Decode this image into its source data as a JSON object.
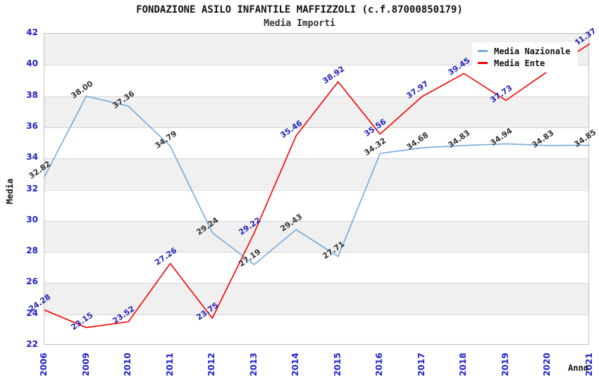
{
  "header": {
    "title": "FONDAZIONE ASILO INFANTILE MAFFIZZOLI (c.f.87000850179)",
    "subtitle": "Media Importi"
  },
  "chart_data": {
    "type": "line",
    "title": "FONDAZIONE ASILO INFANTILE MAFFIZZOLI (c.f.87000850179)",
    "subtitle": "Media Importi",
    "xlabel": "Anno",
    "ylabel": "Media",
    "categories": [
      "2006",
      "2009",
      "2010",
      "2011",
      "2012",
      "2013",
      "2014",
      "2015",
      "2016",
      "2017",
      "2018",
      "2019",
      "2020",
      "2021"
    ],
    "series": [
      {
        "name": "Media Nazionale",
        "color": "#74a9dc",
        "label_color": "#333333",
        "values": [
          32.82,
          38.0,
          37.36,
          34.79,
          29.24,
          27.19,
          29.43,
          27.71,
          34.32,
          34.68,
          34.83,
          34.94,
          34.83,
          34.85
        ],
        "labels": [
          "32.82",
          "38.00",
          "37.36",
          "34.79",
          "29.24",
          "27.19",
          "29.43",
          "27.71",
          "34.32",
          "34.68",
          "34.83",
          "34.94",
          "34.83",
          "34.85"
        ]
      },
      {
        "name": "Media Ente",
        "color": "#f40000",
        "label_color": "#2222bb",
        "values": [
          24.28,
          23.15,
          23.52,
          27.26,
          23.75,
          29.22,
          35.46,
          38.92,
          35.56,
          37.97,
          39.45,
          37.73,
          39.6,
          41.37
        ],
        "labels": [
          "24.28",
          "23.15",
          "23.52",
          "27.26",
          "23.75",
          "29.22",
          "35.46",
          "38.92",
          "35.56",
          "37.97",
          "39.45",
          "37.73",
          null,
          "41.37"
        ]
      }
    ],
    "ylim": [
      22,
      42
    ],
    "ytick_step": 2,
    "yticks": [
      22,
      24,
      26,
      28,
      30,
      32,
      34,
      36,
      38,
      40,
      42
    ],
    "grid": true,
    "band_fill_ranges": [
      [
        24,
        26
      ],
      [
        28,
        30
      ],
      [
        32,
        34
      ],
      [
        36,
        38
      ],
      [
        40,
        42
      ]
    ],
    "band_color": "#f0f0f0",
    "gridline_color": "#d6d6d6",
    "tick_label_color": "#2020cc",
    "legend_position": "top-right"
  },
  "legend": {
    "items": [
      {
        "label": "Media Nazionale",
        "color": "#74a9dc"
      },
      {
        "label": "Media Ente",
        "color": "#f40000"
      }
    ]
  }
}
